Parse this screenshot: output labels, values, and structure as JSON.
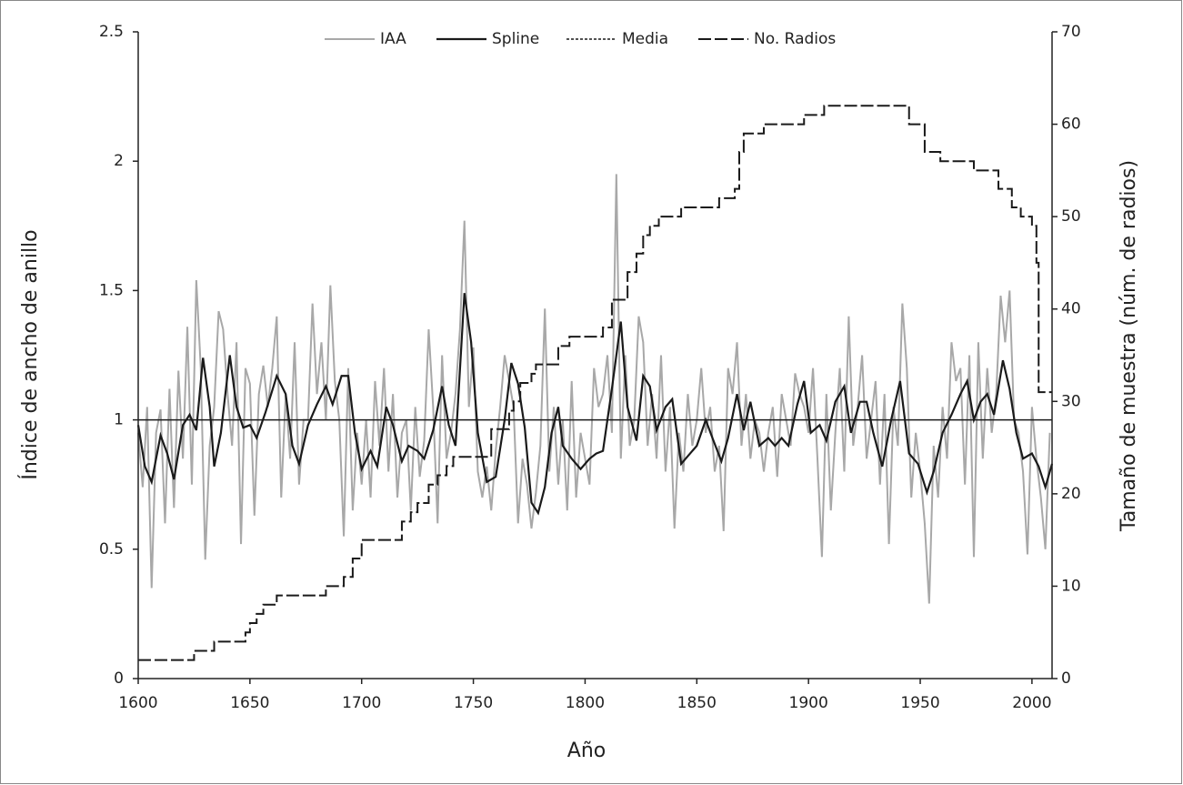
{
  "chart_data": {
    "type": "line",
    "x_label": "Año",
    "y_label": "Índice de ancho de anillo",
    "y2_label": "Tamaño de muestra (núm. de radios)",
    "xlim": [
      1600,
      2009
    ],
    "xticks": [
      1600,
      1650,
      1700,
      1750,
      1800,
      1850,
      1900,
      1950,
      2000
    ],
    "ylim": [
      0,
      2.5
    ],
    "yticks": [
      0,
      0.5,
      1,
      1.5,
      2,
      2.5
    ],
    "y2lim": [
      0,
      70
    ],
    "y2ticks": [
      0,
      10,
      20,
      30,
      40,
      50,
      60,
      70
    ],
    "legend": "top",
    "series": [
      {
        "name": "IAA",
        "color": "#a8a8a8",
        "style": "solid",
        "x": [
          1600,
          1602,
          1604,
          1606,
          1608,
          1610,
          1612,
          1614,
          1616,
          1618,
          1620,
          1622,
          1624,
          1626,
          1628,
          1630,
          1632,
          1634,
          1636,
          1638,
          1640,
          1642,
          1644,
          1646,
          1648,
          1650,
          1652,
          1654,
          1656,
          1658,
          1660,
          1662,
          1664,
          1666,
          1668,
          1670,
          1672,
          1674,
          1676,
          1678,
          1680,
          1682,
          1684,
          1686,
          1688,
          1690,
          1692,
          1694,
          1696,
          1698,
          1700,
          1702,
          1704,
          1706,
          1708,
          1710,
          1712,
          1714,
          1716,
          1718,
          1720,
          1722,
          1724,
          1726,
          1728,
          1730,
          1732,
          1734,
          1736,
          1738,
          1740,
          1742,
          1744,
          1746,
          1748,
          1750,
          1752,
          1754,
          1756,
          1758,
          1760,
          1762,
          1764,
          1766,
          1768,
          1770,
          1772,
          1774,
          1776,
          1778,
          1780,
          1782,
          1784,
          1786,
          1788,
          1790,
          1792,
          1794,
          1796,
          1798,
          1800,
          1802,
          1804,
          1806,
          1808,
          1810,
          1812,
          1814,
          1816,
          1818,
          1820,
          1822,
          1824,
          1826,
          1828,
          1830,
          1832,
          1834,
          1836,
          1838,
          1840,
          1842,
          1844,
          1846,
          1848,
          1850,
          1852,
          1854,
          1856,
          1858,
          1860,
          1862,
          1864,
          1866,
          1868,
          1870,
          1872,
          1874,
          1876,
          1878,
          1880,
          1882,
          1884,
          1886,
          1888,
          1890,
          1892,
          1894,
          1896,
          1898,
          1900,
          1902,
          1904,
          1906,
          1908,
          1910,
          1912,
          1914,
          1916,
          1918,
          1920,
          1922,
          1924,
          1926,
          1928,
          1930,
          1932,
          1934,
          1936,
          1938,
          1940,
          1942,
          1944,
          1946,
          1948,
          1950,
          1952,
          1954,
          1956,
          1958,
          1960,
          1962,
          1964,
          1966,
          1968,
          1970,
          1972,
          1974,
          1976,
          1978,
          1980,
          1982,
          1984,
          1986,
          1988,
          1990,
          1992,
          1994,
          1996,
          1998,
          2000,
          2002,
          2004,
          2006,
          2008
        ],
        "values": [
          0.95,
          0.74,
          1.05,
          0.35,
          0.95,
          1.04,
          0.6,
          1.12,
          0.66,
          1.19,
          0.85,
          1.36,
          0.75,
          1.54,
          1.2,
          0.46,
          0.9,
          1.05,
          1.42,
          1.35,
          1.1,
          0.9,
          1.3,
          0.52,
          1.2,
          1.14,
          0.63,
          1.1,
          1.21,
          1.05,
          1.2,
          1.4,
          0.7,
          1.1,
          0.85,
          1.3,
          0.75,
          1.0,
          1.0,
          1.45,
          1.1,
          1.3,
          1.0,
          1.52,
          1.15,
          1.0,
          0.55,
          1.2,
          0.65,
          0.95,
          0.75,
          1.0,
          0.7,
          1.15,
          0.9,
          1.2,
          0.8,
          1.1,
          0.7,
          0.95,
          1.0,
          0.65,
          1.05,
          0.78,
          0.92,
          1.35,
          1.05,
          0.6,
          1.25,
          0.85,
          0.95,
          1.1,
          1.35,
          1.77,
          1.05,
          1.28,
          0.8,
          0.7,
          0.82,
          0.65,
          0.88,
          1.05,
          1.25,
          1.15,
          1.05,
          0.6,
          0.85,
          0.75,
          0.58,
          0.72,
          0.9,
          1.43,
          0.8,
          1.05,
          0.75,
          1.0,
          0.65,
          1.15,
          0.7,
          0.95,
          0.85,
          0.75,
          1.2,
          1.05,
          1.1,
          1.25,
          0.95,
          1.95,
          0.85,
          1.25,
          0.9,
          1.0,
          1.4,
          1.3,
          0.9,
          1.1,
          0.85,
          1.25,
          0.8,
          1.05,
          0.58,
          0.95,
          0.8,
          1.1,
          0.9,
          1.0,
          1.2,
          0.95,
          1.05,
          0.8,
          0.9,
          0.57,
          1.2,
          1.1,
          1.3,
          0.9,
          1.1,
          0.85,
          1.0,
          0.95,
          0.8,
          0.95,
          1.05,
          0.78,
          1.1,
          1.0,
          0.9,
          1.18,
          1.1,
          1.05,
          0.95,
          1.2,
          0.85,
          0.47,
          1.1,
          0.65,
          0.95,
          1.2,
          0.8,
          1.4,
          0.9,
          1.05,
          1.25,
          0.85,
          1.0,
          1.15,
          0.75,
          1.1,
          0.52,
          1.05,
          0.9,
          1.45,
          1.2,
          0.7,
          0.95,
          0.8,
          0.6,
          0.29,
          0.9,
          0.7,
          1.05,
          0.85,
          1.3,
          1.15,
          1.2,
          0.75,
          1.25,
          0.47,
          1.3,
          0.85,
          1.2,
          0.95,
          1.1,
          1.48,
          1.3,
          1.5,
          1.0,
          0.95,
          0.8,
          0.48,
          1.05,
          0.85,
          0.7,
          0.5,
          0.95
        ]
      },
      {
        "name": "Spline",
        "color": "#1a1a1a",
        "style": "bold",
        "x": [
          1600,
          1603,
          1606,
          1610,
          1613,
          1616,
          1620,
          1623,
          1626,
          1629,
          1632,
          1634,
          1637,
          1641,
          1644,
          1647,
          1650,
          1653,
          1657,
          1662,
          1666,
          1669,
          1672,
          1676,
          1680,
          1684,
          1687,
          1691,
          1694,
          1697,
          1700,
          1704,
          1707,
          1711,
          1714,
          1718,
          1721,
          1725,
          1728,
          1732,
          1736,
          1739,
          1742,
          1746,
          1749,
          1752,
          1756,
          1760,
          1764,
          1767,
          1770,
          1773,
          1776,
          1779,
          1782,
          1785,
          1788,
          1790,
          1794,
          1798,
          1802,
          1805,
          1808,
          1812,
          1816,
          1819,
          1823,
          1826,
          1829,
          1832,
          1836,
          1839,
          1843,
          1847,
          1850,
          1854,
          1857,
          1861,
          1864,
          1868,
          1871,
          1874,
          1878,
          1882,
          1885,
          1888,
          1891,
          1895,
          1898,
          1901,
          1905,
          1908,
          1912,
          1916,
          1919,
          1923,
          1926,
          1929,
          1933,
          1937,
          1941,
          1945,
          1949,
          1953,
          1956,
          1960,
          1964,
          1968,
          1971,
          1974,
          1977,
          1980,
          1983,
          1987,
          1990,
          1993,
          1996,
          2000,
          2003,
          2006,
          2009
        ],
        "values": [
          0.98,
          0.82,
          0.76,
          0.94,
          0.87,
          0.77,
          0.98,
          1.02,
          0.96,
          1.24,
          1.05,
          0.82,
          0.95,
          1.25,
          1.05,
          0.97,
          0.98,
          0.93,
          1.03,
          1.17,
          1.1,
          0.9,
          0.83,
          0.98,
          1.06,
          1.13,
          1.06,
          1.17,
          1.17,
          0.95,
          0.81,
          0.88,
          0.82,
          1.05,
          0.98,
          0.84,
          0.9,
          0.88,
          0.85,
          0.96,
          1.13,
          0.98,
          0.9,
          1.49,
          1.3,
          0.95,
          0.76,
          0.78,
          1.0,
          1.22,
          1.14,
          0.97,
          0.68,
          0.64,
          0.74,
          0.95,
          1.05,
          0.9,
          0.85,
          0.81,
          0.85,
          0.87,
          0.88,
          1.12,
          1.38,
          1.05,
          0.92,
          1.17,
          1.13,
          0.96,
          1.05,
          1.08,
          0.83,
          0.87,
          0.9,
          1.0,
          0.93,
          0.84,
          0.93,
          1.1,
          0.96,
          1.07,
          0.9,
          0.93,
          0.9,
          0.93,
          0.9,
          1.06,
          1.15,
          0.95,
          0.98,
          0.92,
          1.07,
          1.13,
          0.95,
          1.07,
          1.07,
          0.95,
          0.82,
          1.0,
          1.15,
          0.87,
          0.83,
          0.72,
          0.8,
          0.95,
          1.02,
          1.1,
          1.15,
          1.0,
          1.07,
          1.1,
          1.02,
          1.23,
          1.12,
          0.95,
          0.85,
          0.87,
          0.82,
          0.74,
          0.83
        ]
      },
      {
        "name": "Media",
        "color": "#1a1a1a",
        "style": "dotted",
        "x": [
          1600,
          2009
        ],
        "values": [
          1,
          1
        ]
      },
      {
        "name": "No. Radios",
        "color": "#1a1a1a",
        "style": "dashed",
        "axis": "y2",
        "step": true,
        "x": [
          1600,
          1625,
          1634,
          1648,
          1650,
          1653,
          1656,
          1662,
          1684,
          1692,
          1696,
          1700,
          1718,
          1722,
          1725,
          1730,
          1734,
          1738,
          1741,
          1758,
          1766,
          1768,
          1771,
          1776,
          1778,
          1788,
          1793,
          1808,
          1812,
          1819,
          1823,
          1826,
          1829,
          1833,
          1843,
          1860,
          1867,
          1869,
          1871,
          1880,
          1898,
          1907,
          1945,
          1952,
          1959,
          1974,
          1985,
          1991,
          1995,
          2000,
          2002,
          2003,
          2009
        ],
        "values": [
          2,
          3,
          4,
          5,
          6,
          7,
          8,
          9,
          10,
          11,
          13,
          15,
          17,
          18,
          19,
          21,
          22,
          23,
          24,
          27,
          29,
          30,
          32,
          33,
          34,
          36,
          37,
          38,
          41,
          44,
          46,
          48,
          49,
          50,
          51,
          52,
          53,
          57,
          59,
          60,
          61,
          62,
          60,
          57,
          56,
          55,
          53,
          51,
          50,
          49,
          45,
          31,
          31
        ]
      }
    ]
  }
}
